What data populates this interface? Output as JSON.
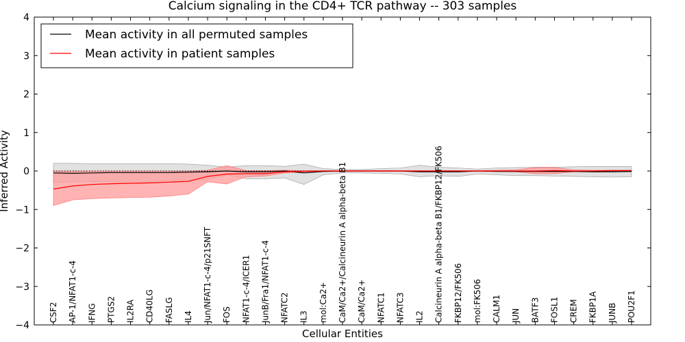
{
  "chart_data": {
    "type": "line",
    "title": "Calcium signaling in the CD4+ TCR pathway -- 303 samples",
    "xlabel": "Cellular Entities",
    "ylabel": "Inferred Activity",
    "ylim": [
      -4,
      4
    ],
    "yticks": [
      -4,
      -3,
      -2,
      -1,
      0,
      1,
      2,
      3,
      4
    ],
    "ytick_labels": [
      "−4",
      "−3",
      "−2",
      "−1",
      "0",
      "1",
      "2",
      "3",
      "4"
    ],
    "reference_line": 0,
    "categories": [
      "CSF2",
      "AP-1/NFAT1-c-4",
      "IFNG",
      "PTGS2",
      "IL2RA",
      "CD40LG",
      "FASLG",
      "IL4",
      "Jun/NFAT1-c-4/p21SNFT",
      "FOS",
      "NFAT1-c-4/ICER1",
      "JunB/Fra1/NFAT1-c-4",
      "NFATC2",
      "IL3",
      "mol:Ca2+",
      "CaM/Ca2+/Calcineurin A alpha-beta B1",
      "CaM/Ca2+",
      "NFATC1",
      "NFATC3",
      "IL2",
      "Calcineurin A alpha-beta B1/FKBP12/FK506",
      "FKBP12/FK506",
      "mol:FK506",
      "CALM1",
      "JUN",
      "BATF3",
      "FOSL1",
      "CREM",
      "FKBP1A",
      "JUNB",
      "POU2F1"
    ],
    "series": [
      {
        "name": "Mean activity in all permuted samples",
        "color": "#000000",
        "band_color": "#c8c8c8",
        "values": [
          -0.05,
          -0.06,
          -0.05,
          -0.04,
          -0.04,
          -0.04,
          -0.04,
          -0.03,
          -0.02,
          0.0,
          -0.02,
          -0.02,
          0.0,
          -0.05,
          -0.01,
          0.0,
          0.0,
          0.0,
          0.0,
          -0.02,
          -0.02,
          -0.02,
          0.0,
          -0.01,
          -0.01,
          -0.01,
          -0.01,
          -0.01,
          -0.02,
          -0.02,
          -0.01
        ],
        "band_lower": [
          -0.3,
          -0.28,
          -0.28,
          -0.27,
          -0.27,
          -0.27,
          -0.26,
          -0.25,
          -0.22,
          -0.1,
          -0.2,
          -0.2,
          -0.18,
          -0.35,
          -0.1,
          -0.05,
          -0.05,
          -0.06,
          -0.08,
          -0.15,
          -0.12,
          -0.14,
          -0.08,
          -0.1,
          -0.12,
          -0.12,
          -0.13,
          -0.14,
          -0.15,
          -0.16,
          -0.15
        ],
        "band_upper": [
          0.2,
          0.2,
          0.19,
          0.19,
          0.19,
          0.19,
          0.19,
          0.18,
          0.15,
          0.1,
          0.14,
          0.14,
          0.12,
          0.18,
          0.06,
          0.04,
          0.04,
          0.06,
          0.08,
          0.15,
          0.1,
          0.08,
          0.05,
          0.08,
          0.09,
          0.1,
          0.1,
          0.11,
          0.12,
          0.12,
          0.12
        ]
      },
      {
        "name": "Mean activity in patient samples",
        "color": "#ff0000",
        "band_color": "#ff9999",
        "values": [
          -0.47,
          -0.39,
          -0.35,
          -0.33,
          -0.32,
          -0.31,
          -0.29,
          -0.27,
          -0.14,
          -0.08,
          -0.07,
          -0.07,
          -0.02,
          -0.01,
          0.0,
          0.0,
          0.0,
          0.0,
          0.0,
          0.0,
          0.0,
          0.0,
          0.0,
          0.0,
          0.0,
          0.0,
          0.01,
          0.0,
          0.0,
          0.01,
          0.01
        ],
        "band_lower": [
          -0.9,
          -0.75,
          -0.72,
          -0.7,
          -0.69,
          -0.68,
          -0.65,
          -0.6,
          -0.28,
          -0.34,
          -0.15,
          -0.13,
          -0.05,
          -0.02,
          -0.01,
          -0.01,
          -0.01,
          -0.01,
          -0.01,
          -0.01,
          -0.01,
          -0.01,
          -0.01,
          -0.01,
          -0.02,
          -0.07,
          -0.07,
          -0.02,
          -0.01,
          0.0,
          0.0
        ],
        "band_upper": [
          0.0,
          0.0,
          0.0,
          0.0,
          0.0,
          0.0,
          0.0,
          0.0,
          0.02,
          0.14,
          0.01,
          0.01,
          0.02,
          0.01,
          0.01,
          0.01,
          0.01,
          0.01,
          0.01,
          0.01,
          0.01,
          0.01,
          0.01,
          0.02,
          0.03,
          0.09,
          0.09,
          0.03,
          0.02,
          0.02,
          0.02
        ]
      }
    ],
    "legend_position": "top-left"
  }
}
